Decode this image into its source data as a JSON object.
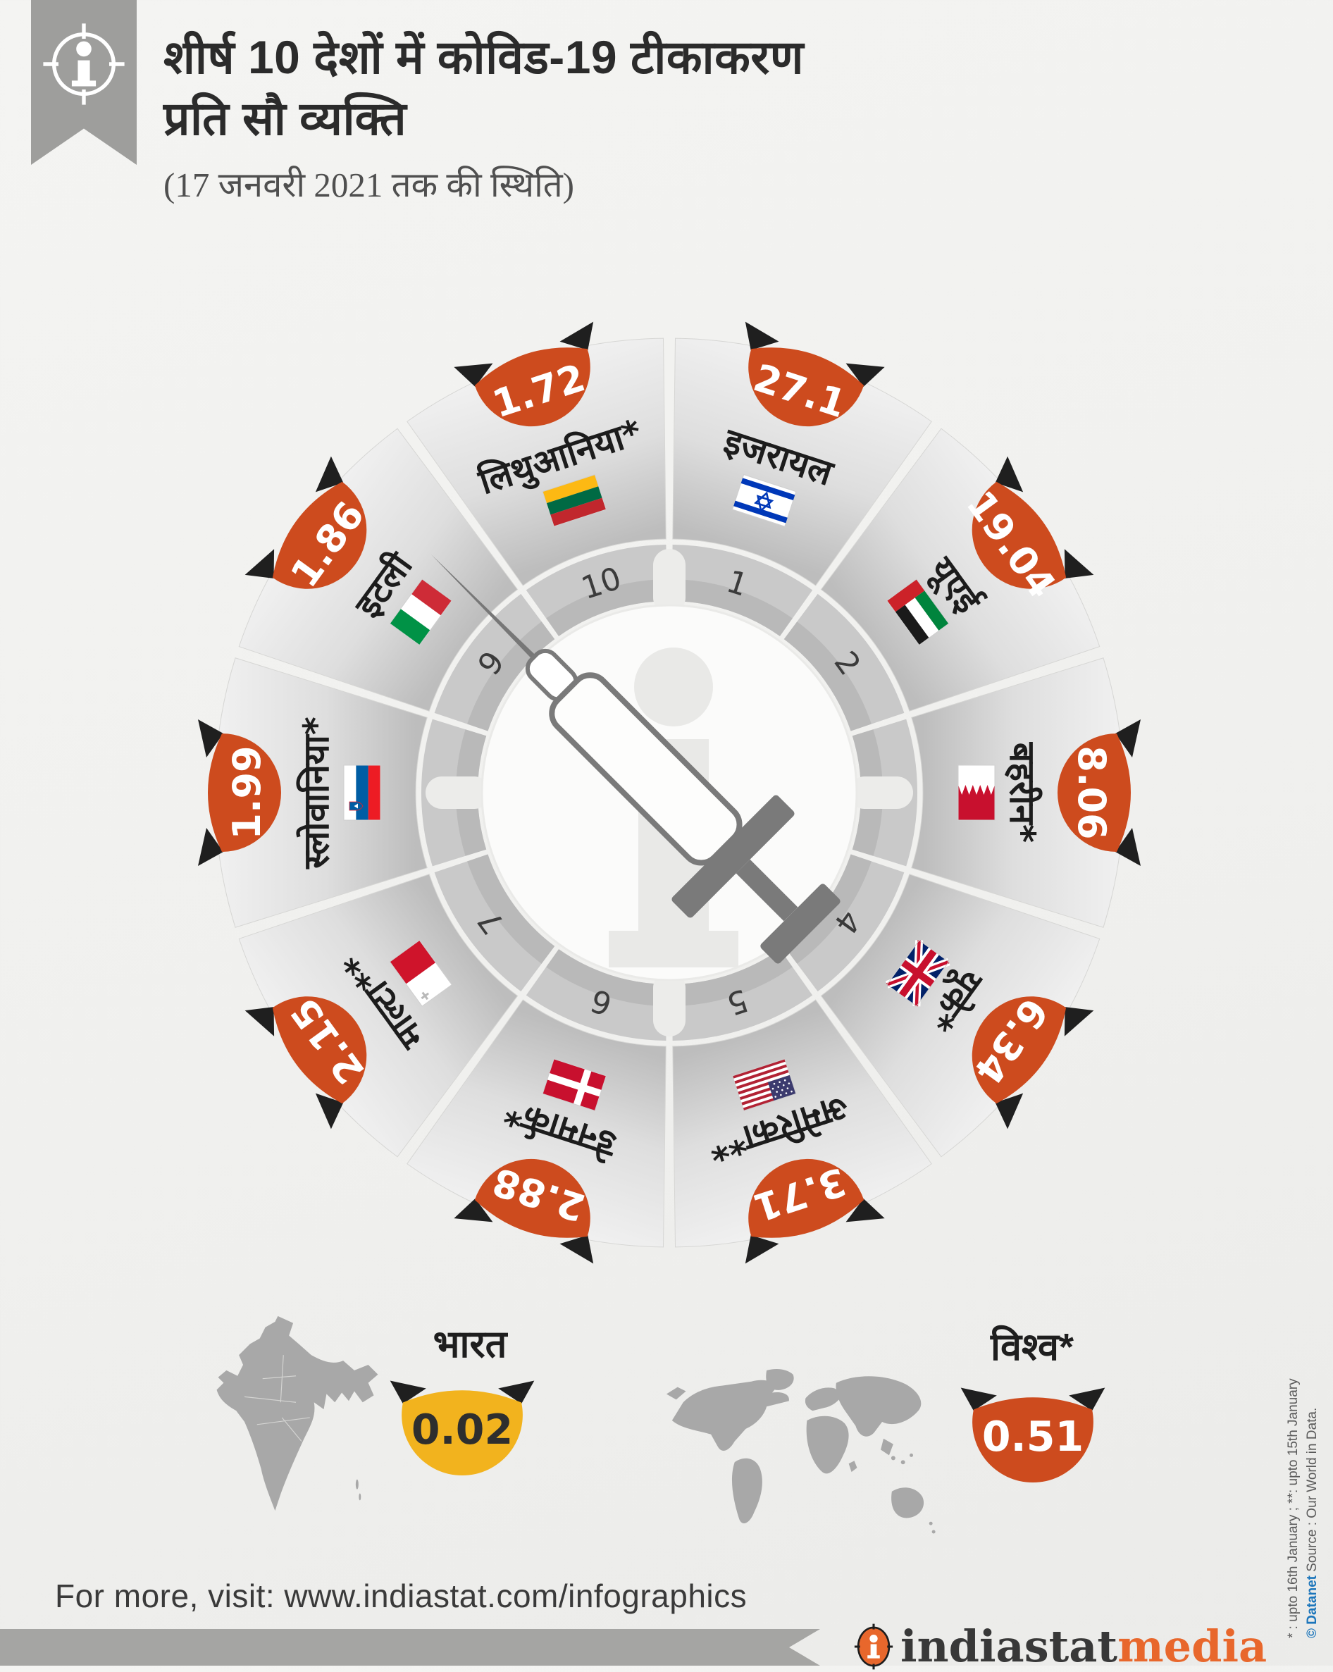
{
  "header": {
    "ribbon_icon": "info-target-icon",
    "title_line1": "शीर्ष 10 देशों में कोविड-19 टीकाकरण",
    "title_line2": "प्रति सौ व्यक्ति",
    "subtitle": "(17 जनवरी 2021 तक की स्थिति)"
  },
  "chart_data": {
    "type": "pie",
    "subtype": "circular-ranking-wheel",
    "title": "शीर्ष 10 देशों में कोविड-19 टीकाकरण प्रति सौ व्यक्ति",
    "subtitle": "(17 जनवरी 2021 तक की स्थिति)",
    "unit": "vaccination doses per hundred people",
    "center_icon": "syringe-icon",
    "center_watermark": "indiastat-i-watermark",
    "segments": [
      {
        "rank": 1,
        "country": "इजरायल",
        "country_en": "Israel",
        "flag": "israel",
        "value": "27.1"
      },
      {
        "rank": 2,
        "country": "यूएई",
        "country_en": "UAE",
        "flag": "uae",
        "value": "19.04"
      },
      {
        "rank": 3,
        "country": "बहरीन*",
        "country_en": "Bahrain",
        "flag": "bahrain",
        "value": "8.06"
      },
      {
        "rank": 4,
        "country": "यूके*",
        "country_en": "UK",
        "flag": "uk",
        "value": "6.34"
      },
      {
        "rank": 5,
        "country": "अमेरिका**",
        "country_en": "USA",
        "flag": "usa",
        "value": "3.71"
      },
      {
        "rank": 6,
        "country": "डेनमार्क*",
        "country_en": "Denmark",
        "flag": "denmark",
        "value": "2.88"
      },
      {
        "rank": 7,
        "country": "माल्टा**",
        "country_en": "Malta",
        "flag": "malta",
        "value": "2.15"
      },
      {
        "rank": 8,
        "country": "स्लोवानिया*",
        "country_en": "Slovenia",
        "flag": "slovenia",
        "value": "1.99"
      },
      {
        "rank": 9,
        "country": "इटली",
        "country_en": "Italy",
        "flag": "italy",
        "value": "1.86"
      },
      {
        "rank": 10,
        "country": "लिथुआनिया*",
        "country_en": "Lithuania",
        "flag": "lithuania",
        "value": "1.72"
      }
    ],
    "india": {
      "label": "भारत",
      "value": "0.02"
    },
    "world": {
      "label": "विश्व*",
      "value": "0.51"
    }
  },
  "footer": {
    "visit_text": "For more, visit: www.indiastat.com/infographics"
  },
  "logo": {
    "icon": "indiastat-i-target-icon",
    "brand": "indiastat",
    "suffix": "media"
  },
  "source_note": {
    "line1": "* : upto 16th January ; **: upto 15th January",
    "line2_brand": "© Datanet",
    "line2_rest": "  Source : Our World in Data."
  },
  "colors": {
    "badge_orange": "#cd4b1e",
    "badge_yellow": "#f2b31e",
    "badge_wing": "#1f1f1f",
    "band": "#c9c9c9",
    "band_inner": "#b9b9b9",
    "rank_text": "#3b3b3b",
    "label_text": "#1c1c1c",
    "map_gray": "#a8a8a8",
    "ribbon_gray": "#9e9e9c",
    "banner_gray": "#a5a5a3",
    "logo_orange": "#e8672c",
    "source_blue": "#1b75bb"
  }
}
